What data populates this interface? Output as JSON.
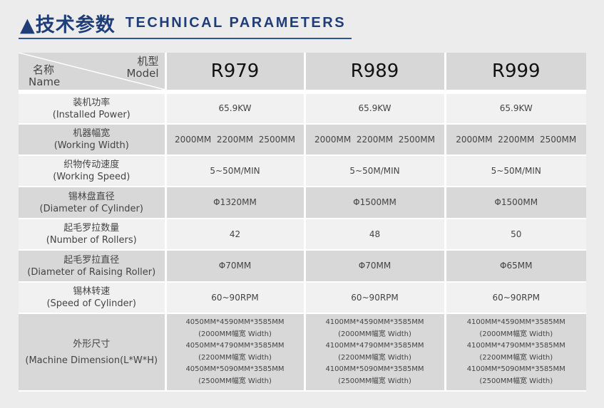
{
  "header": {
    "title_cn": "▲技术参数",
    "title_en": "TECHNICAL PARAMETERS"
  },
  "table": {
    "corner": {
      "model_cn": "机型",
      "model_en": "Model",
      "name_cn": "名称",
      "name_en": "Name"
    },
    "models": [
      "R979",
      "R989",
      "R999"
    ],
    "rows": [
      {
        "cn": "装机功率",
        "en": "(Installed Power)",
        "values": [
          "65.9KW",
          "65.9KW",
          "65.9KW"
        ]
      },
      {
        "cn": "机器幅宽",
        "en": "(Working Width)",
        "values": [
          "2000MM  2200MM  2500MM",
          "2000MM  2200MM  2500MM",
          "2000MM  2200MM  2500MM"
        ]
      },
      {
        "cn": "织物传动速度",
        "en": "(Working Speed)",
        "values": [
          "5~50M/MIN",
          "5~50M/MIN",
          "5~50M/MIN"
        ]
      },
      {
        "cn": "锡林盘直径",
        "en": "(Diameter of  Cylinder)",
        "values": [
          "Φ1320MM",
          "Φ1500MM",
          "Φ1500MM"
        ]
      },
      {
        "cn": "起毛罗拉数量",
        "en": "(Number of Rollers)",
        "values": [
          "42",
          "48",
          "50"
        ]
      },
      {
        "cn": "起毛罗拉直径",
        "en": "(Diameter of Raising Roller)",
        "values": [
          "Φ70MM",
          "Φ70MM",
          "Φ65MM"
        ]
      },
      {
        "cn": "锡林转速",
        "en": "(Speed of Cylinder)",
        "values": [
          "60~90RPM",
          "60~90RPM",
          "60~90RPM"
        ]
      }
    ],
    "dimension": {
      "cn": "外形尺寸",
      "en": "(Machine Dimension(L*W*H)",
      "values": [
        [
          "4050MM*4590MM*3585MM",
          "(2000MM幅宽 Width)",
          "4050MM*4790MM*3585MM",
          "(2200MM幅宽 Width)",
          "4050MM*5090MM*3585MM",
          "(2500MM幅宽 Width)"
        ],
        [
          "4100MM*4590MM*3585MM",
          "(2000MM幅宽 Width)",
          "4100MM*4790MM*3585MM",
          "(2200MM幅宽 Width)",
          "4100MM*5090MM*3585MM",
          "(2500MM幅宽 Width)"
        ],
        [
          "4100MM*4590MM*3585MM",
          "(2000MM幅宽 Width)",
          "4100MM*4790MM*3585MM",
          "(2200MM幅宽 Width)",
          "4100MM*5090MM*3585MM",
          "(2500MM幅宽 Width)"
        ]
      ]
    }
  },
  "colors": {
    "accent": "#1f3e78",
    "header_cell": "#d7d7d7",
    "light_row": "#f1f1f1",
    "gray_row": "#d8d8d8"
  }
}
